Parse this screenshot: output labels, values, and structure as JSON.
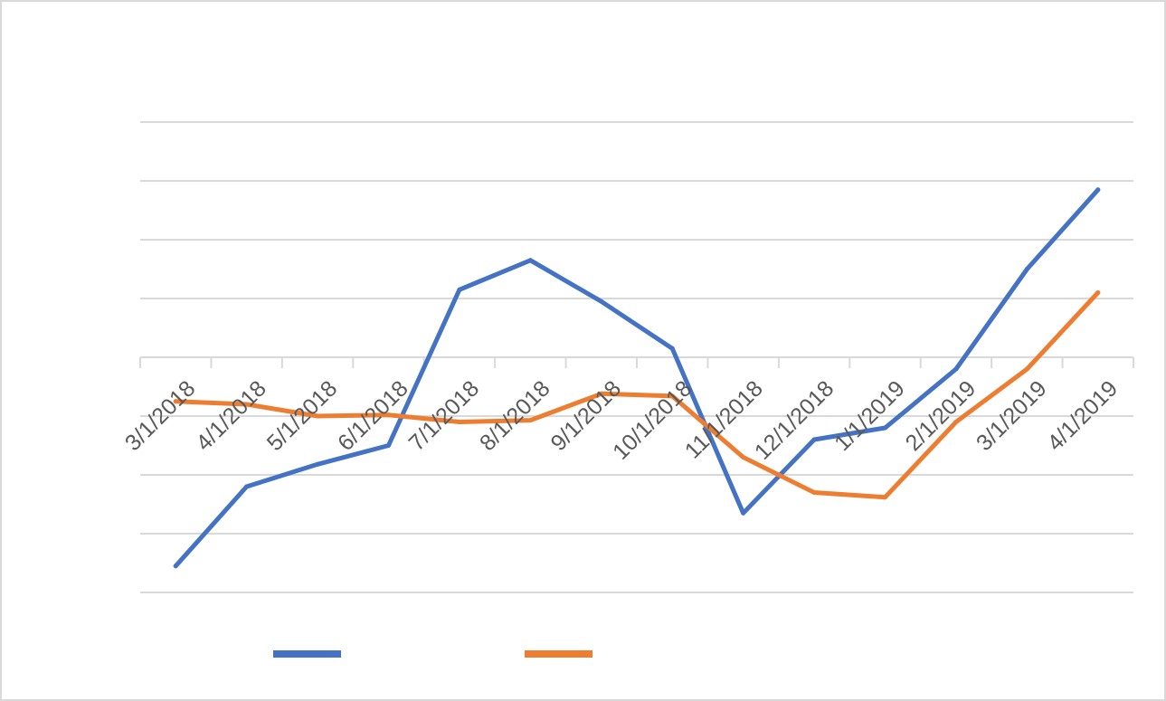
{
  "chart_data": {
    "type": "line",
    "title": "",
    "xlabel": "",
    "ylabel": "",
    "categories": [
      "3/1/2018",
      "4/1/2018",
      "5/1/2018",
      "6/1/2018",
      "7/1/2018",
      "8/1/2018",
      "9/1/2018",
      "10/1/2018",
      "11/1/2018",
      "12/1/2018",
      "1/1/2019",
      "2/1/2019",
      "3/1/2019",
      "4/1/2019"
    ],
    "ylim": [
      -4,
      4
    ],
    "grid": true,
    "legend_placement": "bottom",
    "series": [
      {
        "values": [
          -3.55,
          -2.2,
          -1.82,
          -1.5,
          1.15,
          1.65,
          0.95,
          0.15,
          -2.65,
          -1.4,
          -1.2,
          -0.2,
          1.5,
          2.85
        ],
        "color": "#4472C4"
      },
      {
        "values": [
          -0.75,
          -0.8,
          -1.0,
          -0.98,
          -1.1,
          -1.07,
          -0.62,
          -0.66,
          -1.7,
          -2.3,
          -2.38,
          -1.1,
          -0.2,
          1.1
        ],
        "color": "#ED7D31"
      }
    ]
  }
}
